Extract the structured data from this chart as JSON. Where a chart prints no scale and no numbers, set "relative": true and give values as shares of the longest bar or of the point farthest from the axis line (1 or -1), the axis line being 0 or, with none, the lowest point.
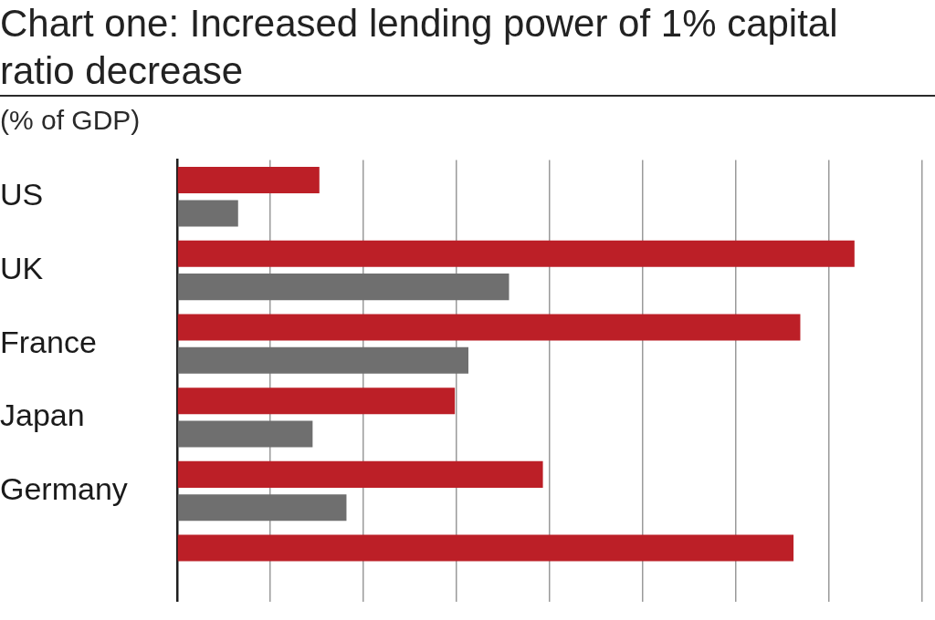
{
  "chart_data": {
    "type": "bar",
    "orientation": "horizontal",
    "relative": true,
    "title": "Chart one: Increased lending power of 1% capital ratio decrease",
    "subtitle": "(% of GDP)",
    "categories": [
      "US",
      "UK",
      "France",
      "Japan",
      "Germany",
      null
    ],
    "series": [
      {
        "color": "#bc1f27",
        "values": [
          0.21,
          1,
          0.92,
          0.41,
          0.54,
          0.91
        ]
      },
      {
        "color": "#6f6f6f",
        "values": [
          0.09,
          0.49,
          0.43,
          0.2,
          0.25,
          null
        ]
      }
    ],
    "grid": "x"
  }
}
